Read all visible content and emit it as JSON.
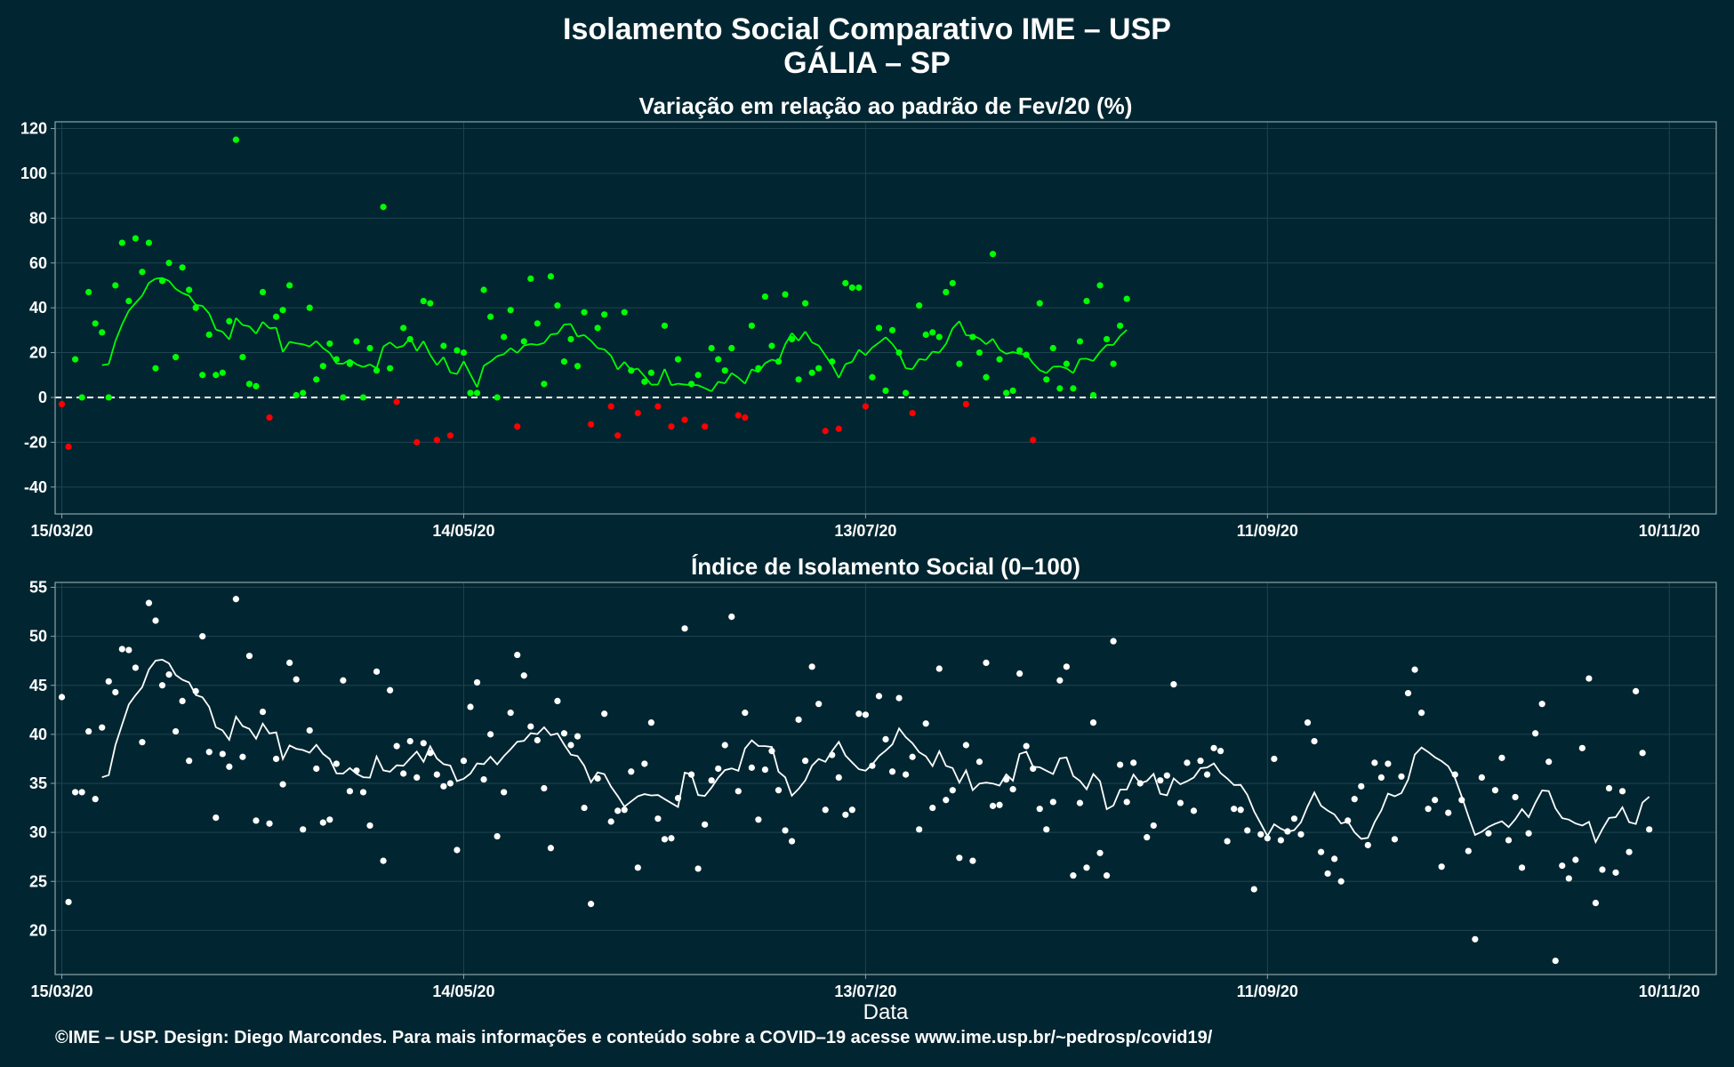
{
  "title_line1": "Isolamento Social Comparativo IME – USP",
  "title_line2": "GÁLIA – SP",
  "footer": "©IME – USP. Design: Diego Marcondes. Para mais informações e conteúdo sobre a COVID–19 acesse www.ime.usp.br/~pedrosp/covid19/",
  "colors": {
    "background": "#022631",
    "positive": "#00ff00",
    "negative": "#ff0000",
    "index": "#ffffff",
    "grid": "#1e4450",
    "axis_border": "#8aa3aa"
  },
  "chart_data": [
    {
      "type": "scatter",
      "title": "Variação em relação ao padrão de Fev/20 (%)",
      "x_tick_labels": [
        "15/03/20",
        "14/05/20",
        "13/07/20",
        "11/09/20",
        "10/11/20"
      ],
      "x_tick_days": [
        0,
        60,
        120,
        180,
        240
      ],
      "y_ticks": [
        -40,
        -20,
        0,
        20,
        40,
        60,
        80,
        100,
        120
      ],
      "ylim": [
        -52,
        123
      ],
      "xlim_days": [
        -1,
        247
      ],
      "reference_line": 0,
      "legend": "none",
      "grid": true,
      "x_start_date": "15/03/20",
      "points": [
        -3,
        -22,
        17,
        0,
        47,
        33,
        29,
        0,
        50,
        69,
        43,
        71,
        56,
        69,
        13,
        52,
        60,
        18,
        58,
        48,
        40,
        10,
        28,
        10,
        11,
        34,
        115,
        18,
        6,
        5,
        47,
        -9,
        36,
        39,
        50,
        1,
        2,
        40,
        8,
        14,
        24,
        17,
        0,
        15,
        25,
        0,
        22,
        12,
        85,
        13,
        -2,
        31,
        26,
        -20,
        43,
        42,
        -19,
        23,
        -17,
        21,
        20,
        2,
        2,
        48,
        36,
        0,
        27,
        39,
        -13,
        25,
        53,
        33,
        6,
        54,
        41,
        16,
        26,
        14,
        38,
        -12,
        31,
        37,
        -4,
        -17,
        38,
        12,
        -7,
        7,
        11,
        -4,
        32,
        -13,
        17,
        -10,
        6,
        10,
        -13,
        22,
        17,
        12,
        22,
        -8,
        -9,
        32,
        13,
        45,
        23,
        16,
        46,
        26,
        8,
        42,
        11,
        13,
        -15,
        16,
        -14,
        51,
        49,
        49,
        -4,
        9,
        31,
        3,
        30,
        20,
        2,
        -7,
        41,
        28,
        29,
        27,
        47,
        51,
        15,
        -3,
        27,
        20,
        9,
        64,
        17,
        2,
        3,
        21,
        19,
        -19,
        42,
        8,
        22,
        4,
        15,
        4,
        25,
        43,
        1,
        50,
        26,
        15,
        32,
        44
      ]
    },
    {
      "type": "line",
      "title": "Índice de Isolamento Social (0–100)",
      "xlabel": "Data",
      "x_tick_labels": [
        "15/03/20",
        "14/05/20",
        "13/07/20",
        "11/09/20",
        "10/11/20"
      ],
      "x_tick_days": [
        0,
        60,
        120,
        180,
        240
      ],
      "y_ticks": [
        20,
        25,
        30,
        35,
        40,
        45,
        50,
        55
      ],
      "ylim": [
        15.5,
        55.5
      ],
      "xlim_days": [
        -1,
        247
      ],
      "legend": "none",
      "grid": true,
      "x_start_date": "15/03/20",
      "points": [
        43.8,
        22.9,
        34.1,
        34.1,
        40.3,
        33.4,
        40.7,
        45.4,
        44.3,
        48.7,
        48.6,
        46.8,
        39.2,
        53.4,
        51.6,
        45.0,
        46.1,
        40.3,
        43.4,
        37.3,
        44.4,
        50.0,
        38.2,
        31.5,
        38.0,
        36.7,
        53.8,
        37.7,
        48.0,
        31.2,
        42.3,
        30.9,
        37.5,
        34.9,
        47.3,
        45.6,
        30.3,
        40.4,
        36.5,
        31.0,
        31.3,
        37.0,
        45.5,
        34.2,
        36.3,
        34.1,
        30.7,
        46.4,
        27.1,
        44.5,
        38.8,
        36.0,
        39.3,
        35.6,
        39.1,
        38.1,
        35.9,
        34.7,
        35.0,
        28.2,
        37.3,
        42.8,
        45.3,
        35.4,
        40.0,
        29.6,
        34.1,
        42.2,
        48.1,
        46.0,
        40.8,
        39.4,
        34.5,
        28.4,
        43.4,
        40.1,
        38.9,
        39.8,
        32.5,
        22.7,
        35.5,
        42.1,
        31.1,
        32.2,
        32.3,
        36.2,
        26.4,
        37.0,
        41.2,
        31.4,
        29.3,
        29.4,
        33.5,
        50.8,
        35.9,
        26.3,
        30.8,
        35.3,
        36.5,
        38.9,
        52.0,
        34.2,
        42.2,
        36.6,
        31.3,
        36.4,
        38.3,
        34.3,
        30.2,
        29.1,
        41.5,
        37.3,
        46.9,
        43.1,
        32.3,
        37.9,
        35.6,
        31.8,
        32.3,
        42.1,
        42.0,
        36.8,
        43.9,
        39.5,
        36.2,
        43.7,
        35.9,
        37.7,
        30.3,
        41.1,
        32.5,
        46.7,
        33.3,
        34.3,
        27.4,
        38.9,
        27.1,
        37.2,
        47.3,
        32.7,
        32.8,
        35.4,
        34.4,
        46.2,
        38.8,
        36.5,
        32.4,
        30.3,
        33.1,
        45.5,
        46.9,
        25.6,
        33.0,
        26.4,
        41.2,
        27.9,
        25.6,
        49.5,
        36.9,
        33.1,
        37.1,
        35.0,
        29.5,
        30.7,
        35.3,
        35.8,
        45.1,
        33.0,
        37.1,
        32.2,
        37.3,
        35.9,
        38.6,
        38.3,
        29.1,
        32.4,
        32.3,
        30.2,
        24.2,
        29.8,
        29.4,
        37.5,
        29.2,
        30.1,
        31.4,
        29.8,
        41.2,
        39.3,
        28.0,
        25.8,
        27.3,
        25.0,
        31.2,
        33.4,
        34.7,
        28.7,
        37.1,
        35.6,
        37.0,
        29.3,
        35.7,
        44.2,
        46.6,
        42.2,
        32.4,
        33.3,
        26.5,
        32.0,
        35.9,
        33.3,
        28.1,
        19.1,
        35.6,
        29.9,
        34.3,
        37.6,
        29.2,
        33.6,
        26.4,
        29.9,
        40.1,
        43.1,
        37.2,
        16.9,
        26.6,
        25.3,
        27.2,
        38.6,
        45.7,
        22.8,
        26.2,
        34.5,
        25.9,
        34.2,
        28.0,
        44.4,
        38.1,
        30.3
      ]
    }
  ]
}
